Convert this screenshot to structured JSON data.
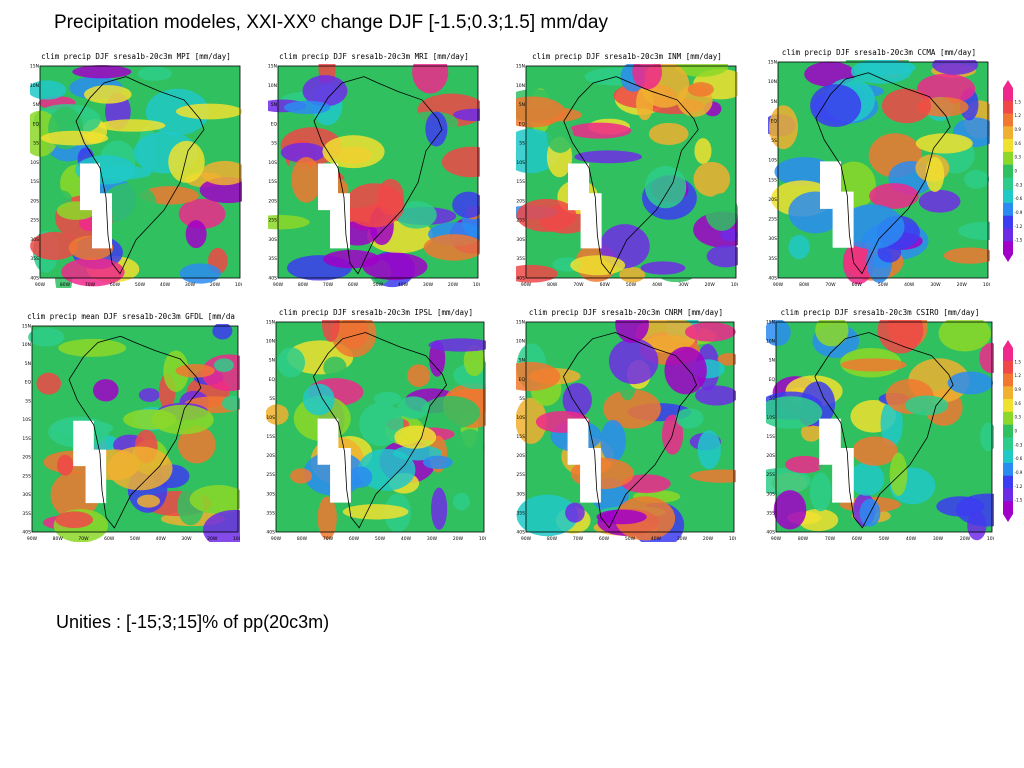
{
  "title": "Precipitation modeles, XXI-XXº change DJF [-1.5;0.3;1.5] mm/day",
  "footnote": "Unities : [-15;3;15]% of pp(20c3m)",
  "colors": {
    "scale": [
      "#a000c8",
      "#6e2be6",
      "#3c3cf0",
      "#2a8cf0",
      "#20c8c8",
      "#2ecc8a",
      "#30c060",
      "#8cd828",
      "#f0e030",
      "#f0b030",
      "#f07830",
      "#f04848",
      "#f0288c"
    ]
  },
  "panels": [
    {
      "title": "clim precip DJF sresa1b-20c3m MPI [mm/day]",
      "model": "MPI"
    },
    {
      "title": "clim precip DJF sresa1b-20c3m MRI [mm/day]",
      "model": "MRI"
    },
    {
      "title": "clim precip DJF sresa1b-20c3m INM [mm/day]",
      "model": "INM"
    },
    {
      "title": "clim precip DJF sresa1b-20c3m CCMA [mm/day]",
      "model": "CCMA"
    },
    {
      "title": "clim precip mean DJF sresa1b-20c3m GFDL [mm/da",
      "model": "GFDL"
    },
    {
      "title": "clim precip DJF sresa1b-20c3m IPSL [mm/day]",
      "model": "IPSL"
    },
    {
      "title": "clim precip DJF sresa1b-20c3m CNRM [mm/day]",
      "model": "CNRM"
    },
    {
      "title": "clim precip DJF sresa1b-20c3m CSIRO [mm/day]",
      "model": "CSIRO"
    }
  ],
  "axes": {
    "lon_ticks": [
      "90W",
      "80W",
      "70W",
      "60W",
      "50W",
      "40W",
      "30W",
      "20W",
      "10W"
    ],
    "lat_ticks": [
      "15N",
      "10N",
      "5N",
      "EQ",
      "5S",
      "10S",
      "15S",
      "20S",
      "25S",
      "30S",
      "35S",
      "40S"
    ]
  },
  "colorbar_labels": [
    "1.5",
    "1.2",
    "0.9",
    "0.6",
    "0.3",
    "0",
    "-0.3",
    "-0.6",
    "-0.9",
    "-1.2",
    "-1.5"
  ]
}
